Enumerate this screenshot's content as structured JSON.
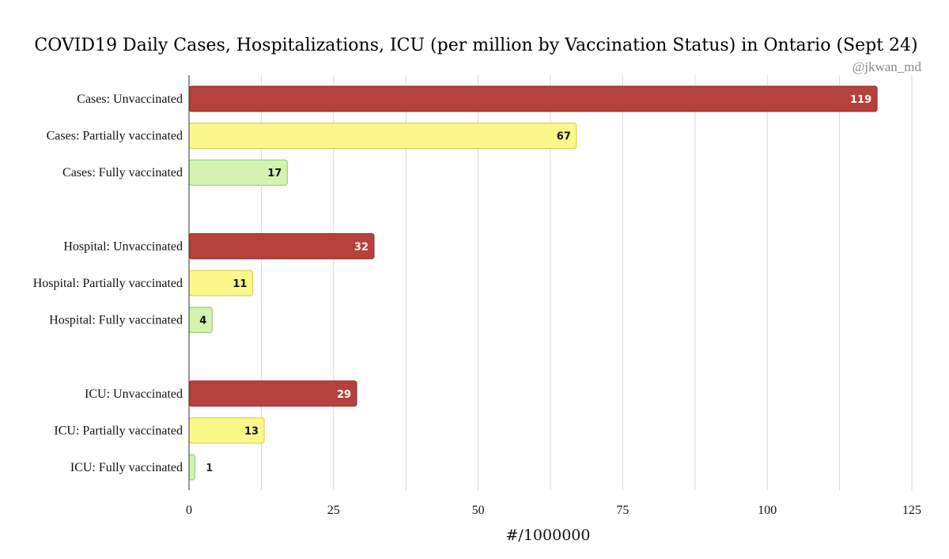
{
  "chart_data": {
    "type": "bar",
    "orientation": "horizontal",
    "title": "COVID19 Daily Cases, Hospitalizations, ICU (per million by Vaccination Status) in Ontario (Sept 24)",
    "watermark": "@jkwan_md",
    "xlabel": "#/1000000",
    "ylabel": "",
    "xlim": [
      0,
      125
    ],
    "xticks": [
      0,
      25,
      50,
      75,
      100,
      125
    ],
    "grid": true,
    "legend": "none",
    "colors": {
      "unvaccinated": "#b5403c",
      "partially": "#fbf88a",
      "fully": "#d4f2b0",
      "unvaccinated_border": "#8f2e2a",
      "partially_border": "#d9c84a",
      "fully_border": "#8cc96a"
    },
    "groups": [
      {
        "name": "Cases",
        "bars": [
          {
            "label": "Cases: Unvaccinated",
            "value": 119,
            "status": "unvaccinated"
          },
          {
            "label": "Cases: Partially vaccinated",
            "value": 67,
            "status": "partially"
          },
          {
            "label": "Cases: Fully vaccinated",
            "value": 17,
            "status": "fully"
          }
        ]
      },
      {
        "name": "Hospital",
        "bars": [
          {
            "label": "Hospital: Unvaccinated",
            "value": 32,
            "status": "unvaccinated"
          },
          {
            "label": "Hospital: Partially vaccinated",
            "value": 11,
            "status": "partially"
          },
          {
            "label": "Hospital: Fully vaccinated",
            "value": 4,
            "status": "fully"
          }
        ]
      },
      {
        "name": "ICU",
        "bars": [
          {
            "label": "ICU: Unvaccinated",
            "value": 29,
            "status": "unvaccinated"
          },
          {
            "label": "ICU: Partially vaccinated",
            "value": 13,
            "status": "partially"
          },
          {
            "label": "ICU: Fully vaccinated",
            "value": 1,
            "status": "fully"
          }
        ]
      }
    ]
  }
}
